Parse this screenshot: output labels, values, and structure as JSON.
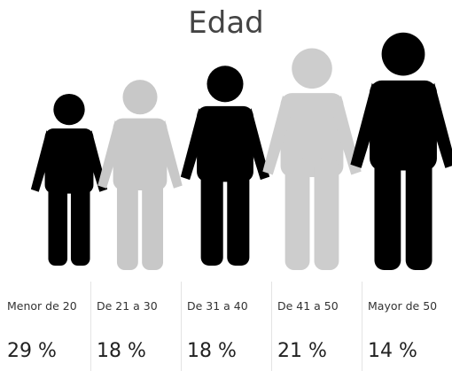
{
  "title": "Edad",
  "groups": [
    {
      "label": "Menor de 20",
      "value": "29 %"
    },
    {
      "label": "De 21 a 30",
      "value": "18 %"
    },
    {
      "label": "De 31 a 40",
      "value": "18 %"
    },
    {
      "label": "De 41 a 50",
      "value": "21 %"
    },
    {
      "label": "Mayor de 50",
      "value": "14 %"
    }
  ]
}
